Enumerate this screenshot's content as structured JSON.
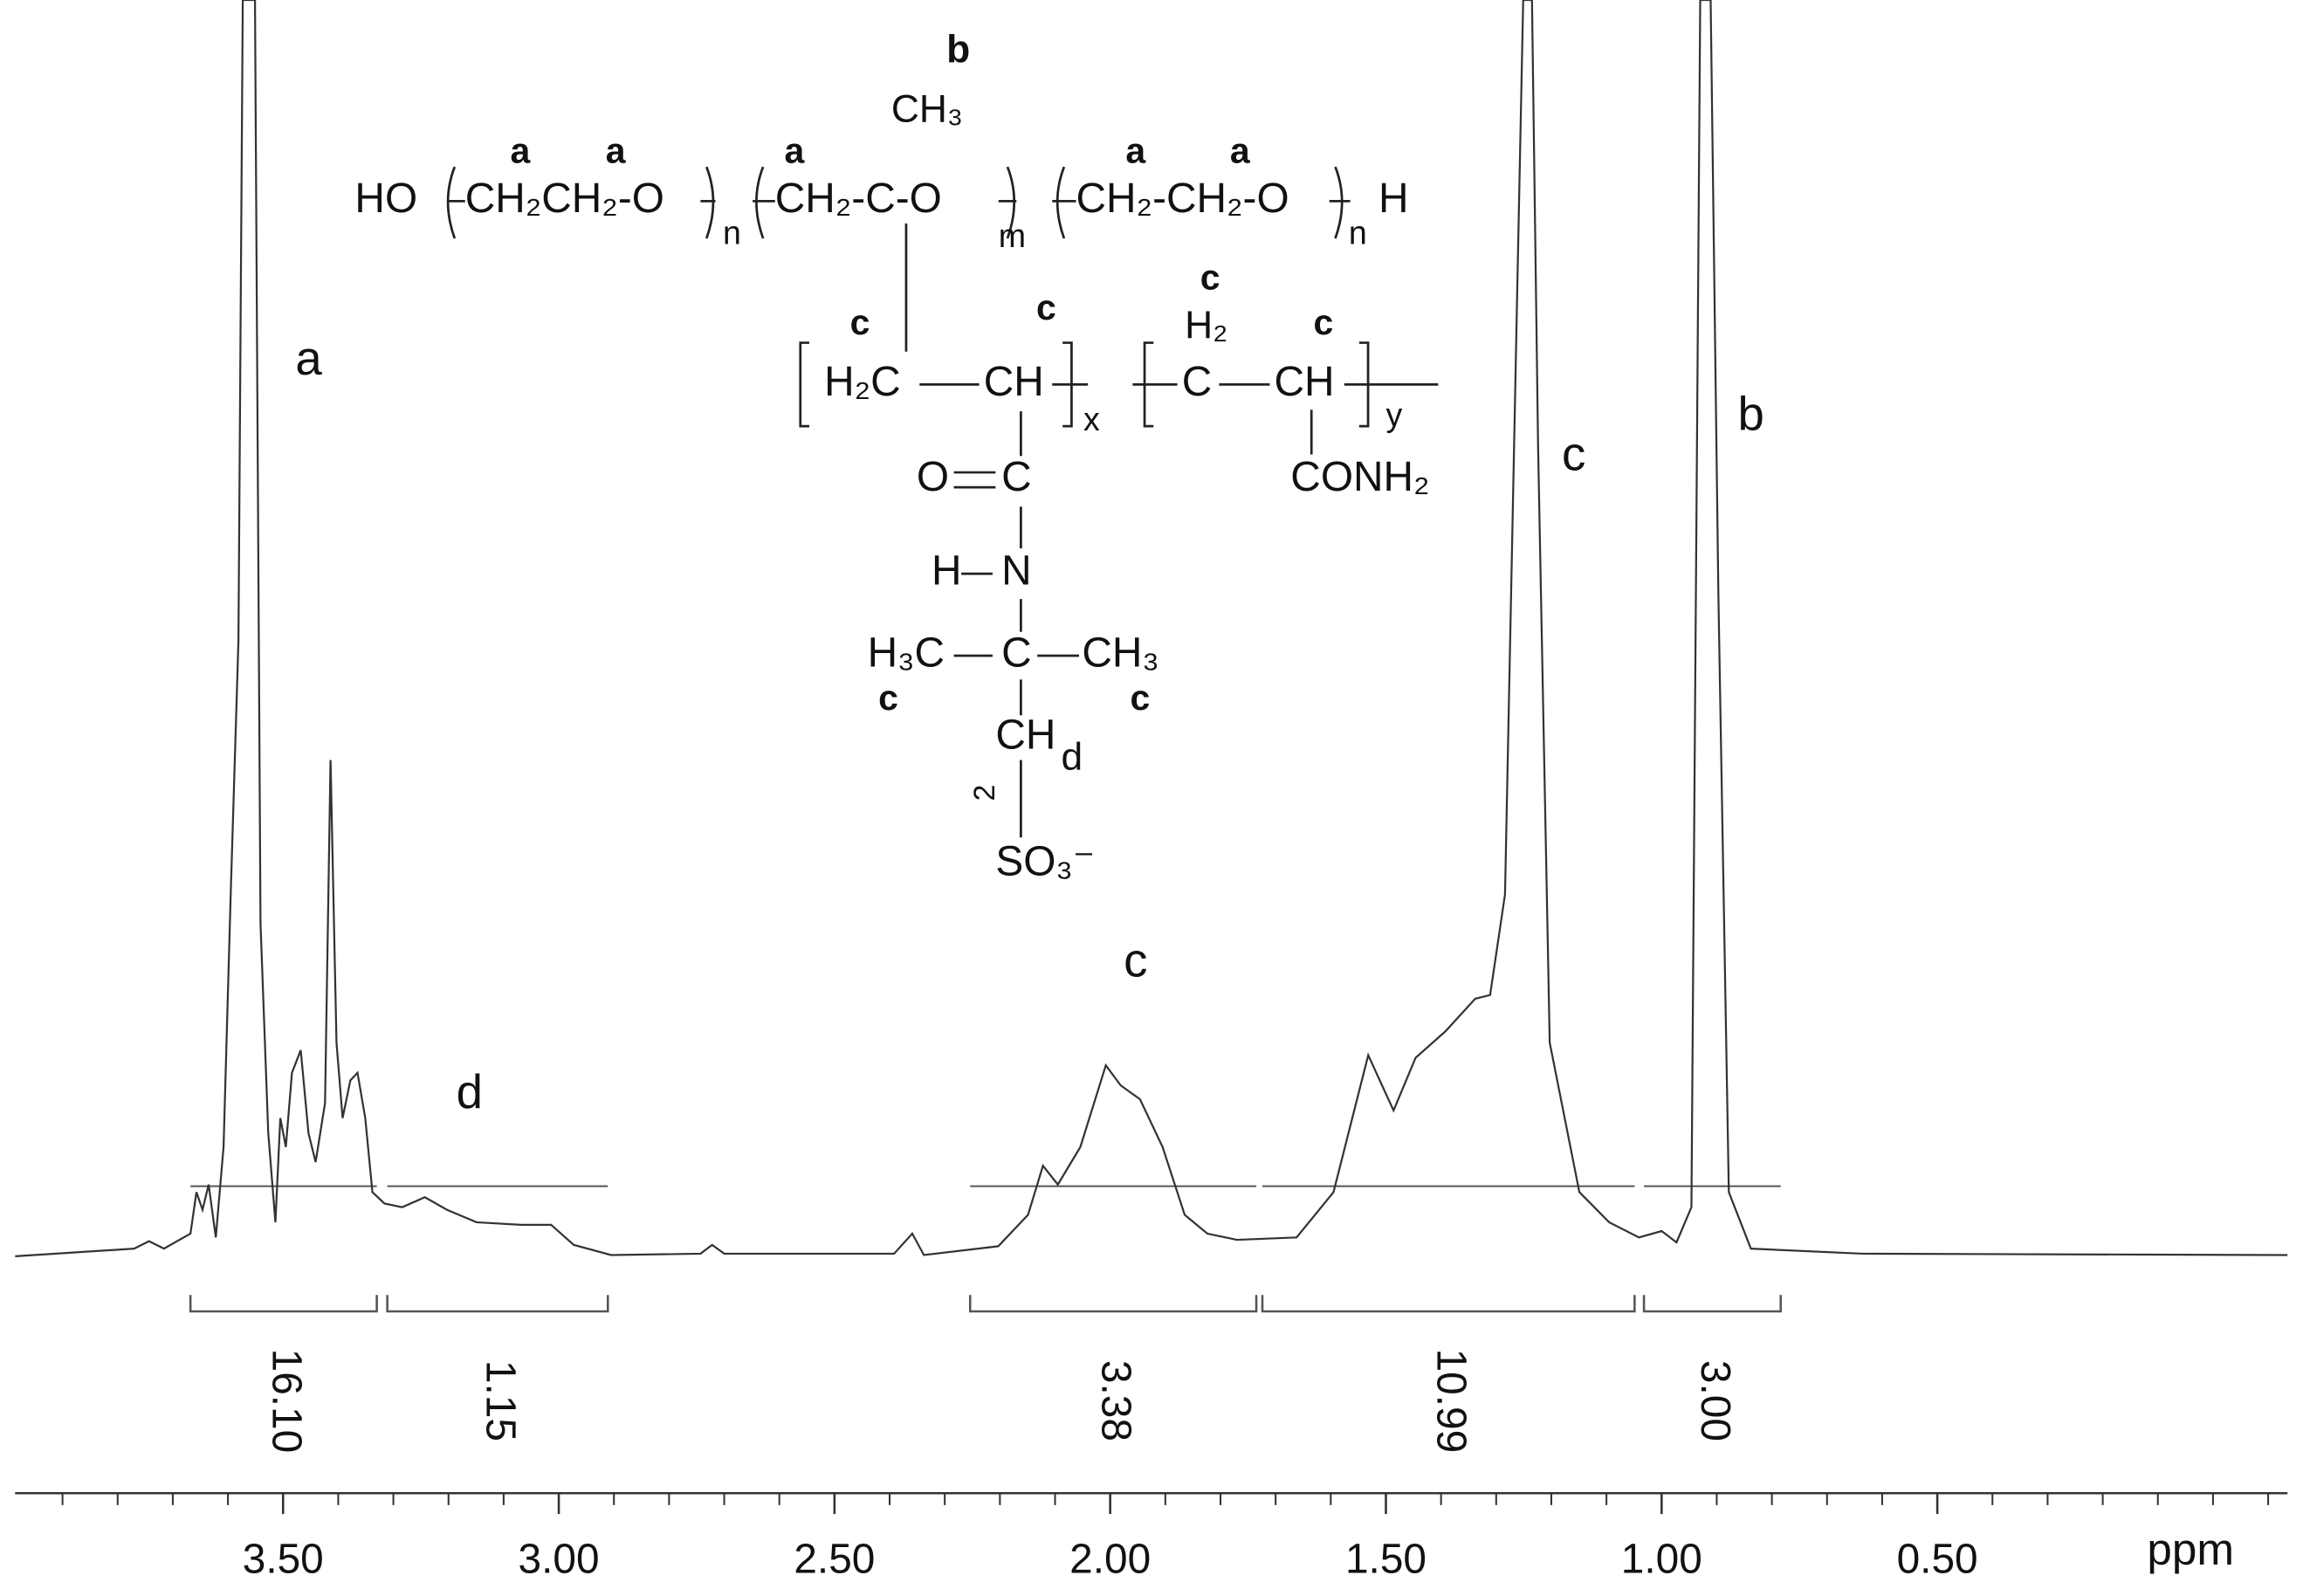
{
  "chart_data": {
    "type": "line",
    "color": "#333333",
    "x": [
      3.986,
      3.77,
      3.743,
      3.716,
      3.668,
      3.657,
      3.646,
      3.635,
      3.622,
      3.608,
      3.595,
      3.581,
      3.573,
      3.551,
      3.541,
      3.527,
      3.514,
      3.505,
      3.495,
      3.484,
      3.468,
      3.454,
      3.441,
      3.424,
      3.414,
      3.403,
      3.392,
      3.378,
      3.365,
      3.351,
      3.338,
      3.316,
      3.284,
      3.243,
      3.203,
      3.149,
      3.068,
      3.014,
      2.973,
      2.905,
      2.743,
      2.722,
      2.7,
      2.392,
      2.359,
      2.338,
      2.203,
      2.149,
      2.122,
      2.095,
      2.054,
      2.008,
      1.981,
      1.946,
      1.905,
      1.865,
      1.824,
      1.77,
      1.662,
      1.595,
      1.532,
      1.486,
      1.446,
      1.392,
      1.338,
      1.311,
      1.284,
      1.262,
      1.251,
      1.235,
      1.224,
      1.203,
      1.149,
      1.095,
      1.041,
      1.0,
      0.973,
      0.946,
      0.93,
      0.911,
      0.897,
      0.878,
      0.838,
      0.635,
      -0.135
    ],
    "values": [
      0,
      0.6,
      1.2,
      0.6,
      1.8,
      5.1,
      3.7,
      5.7,
      1.5,
      8.7,
      28.8,
      49.0,
      100,
      100,
      26.5,
      9.8,
      2.7,
      11.0,
      8.7,
      14.6,
      16.4,
      9.8,
      7.5,
      12.2,
      39.5,
      17.0,
      11.0,
      14.0,
      14.6,
      11.0,
      5.1,
      4.2,
      3.9,
      4.7,
      3.7,
      2.7,
      2.5,
      2.5,
      0.9,
      0.1,
      0.2,
      0.9,
      0.2,
      0.2,
      1.8,
      0.1,
      0.8,
      3.3,
      7.2,
      5.7,
      8.7,
      15.2,
      13.6,
      12.5,
      8.7,
      3.3,
      1.8,
      1.3,
      1.5,
      5.1,
      16.0,
      11.6,
      15.8,
      17.9,
      20.5,
      20.8,
      28.8,
      76.3,
      100,
      100,
      64.4,
      17.0,
      5.1,
      2.7,
      1.5,
      2.0,
      1.1,
      3.9,
      100,
      100,
      52.6,
      5.1,
      0.6,
      0.2,
      0.1
    ],
    "xlim": [
      3.986,
      -0.135
    ],
    "ylim": [
      0,
      100
    ],
    "xticks": [
      {
        "value": 3.5,
        "label": "3.50"
      },
      {
        "value": 3.0,
        "label": "3.00"
      },
      {
        "value": 2.5,
        "label": "2.50"
      },
      {
        "value": 2.0,
        "label": "2.00"
      },
      {
        "value": 1.5,
        "label": "1.50"
      },
      {
        "value": 1.0,
        "label": "1.00"
      },
      {
        "value": 0.5,
        "label": "0.50"
      }
    ],
    "xminorticks": [
      3.9,
      3.8,
      3.7,
      3.6,
      3.4,
      3.3,
      3.2,
      3.1,
      2.9,
      2.8,
      2.7,
      2.6,
      2.4,
      2.3,
      2.2,
      2.1,
      1.9,
      1.8,
      1.7,
      1.6,
      1.4,
      1.3,
      1.2,
      1.1,
      0.9,
      0.8,
      0.7,
      0.6,
      0.4,
      0.3,
      0.2,
      0.1,
      0,
      -0.1
    ],
    "xlabel": "ppm",
    "integrals": [
      {
        "range": [
          3.668,
          3.33
        ],
        "value": 16.1,
        "label": "16.10"
      },
      {
        "range": [
          3.311,
          2.911
        ],
        "value": 1.15
      },
      {
        "range": [
          2.254,
          1.735
        ],
        "value": 3.38
      },
      {
        "range": [
          1.724,
          1.049
        ],
        "value": 10.99
      },
      {
        "range": [
          1.032,
          0.784
        ],
        "value": 3.0,
        "label": "3.00"
      }
    ],
    "annotations": [
      "a",
      "d",
      "c",
      "c",
      "b"
    ],
    "structure": [
      "b",
      "CH₃",
      "a",
      "a",
      "a",
      "a",
      "a",
      "HO",
      "CH₂CH₂-O",
      "n",
      "CH₂-C-O",
      "m",
      "CH₂-CH₂-O",
      "n",
      "H",
      "c",
      "H₂",
      "c",
      "c",
      "c",
      "H₂C",
      "CH",
      "x",
      "C",
      "CH",
      "y",
      "O",
      "C",
      "CONH₂",
      "H",
      "N",
      "H₃C",
      "C",
      "CH₃",
      "c",
      "c",
      "CH",
      "2",
      "d",
      "SO₃⁻"
    ]
  }
}
